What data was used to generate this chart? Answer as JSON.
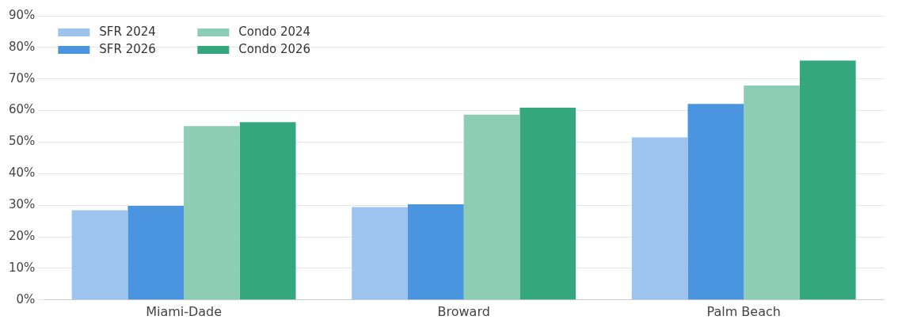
{
  "chart_data": {
    "type": "bar",
    "categories": [
      "Miami-Dade",
      "Broward",
      "Palm Beach"
    ],
    "series": [
      {
        "name": "SFR 2024",
        "color": "#9dc3ee",
        "values": [
          28.4,
          29.4,
          51.5
        ]
      },
      {
        "name": "SFR 2026",
        "color": "#4a94e0",
        "values": [
          29.8,
          30.3,
          62.1
        ]
      },
      {
        "name": "Condo 2024",
        "color": "#8ecdb5",
        "values": [
          55.1,
          58.7,
          67.9
        ]
      },
      {
        "name": "Condo 2026",
        "color": "#34a77f",
        "values": [
          56.3,
          60.9,
          75.8
        ]
      }
    ],
    "ylim": [
      0,
      90
    ],
    "yticks": [
      {
        "value": 0,
        "label": "0%"
      },
      {
        "value": 10,
        "label": "10%"
      },
      {
        "value": 20,
        "label": "20%"
      },
      {
        "value": 30,
        "label": "30%"
      },
      {
        "value": 40,
        "label": "40%"
      },
      {
        "value": 50,
        "label": "50%"
      },
      {
        "value": 60,
        "label": "60%"
      },
      {
        "value": 70,
        "label": "70%"
      },
      {
        "value": 80,
        "label": "80%"
      },
      {
        "value": 90,
        "label": "90%"
      }
    ],
    "grid": "y",
    "legend": "top left"
  }
}
